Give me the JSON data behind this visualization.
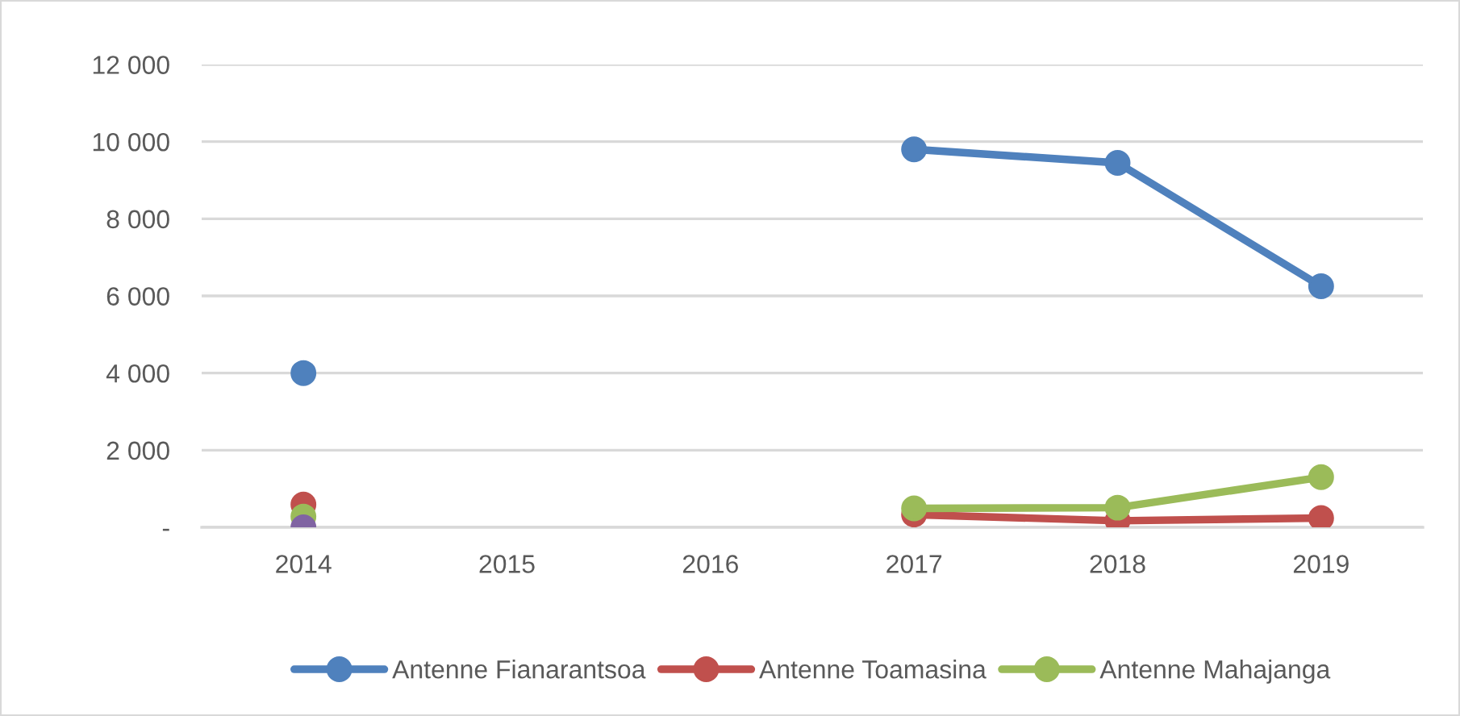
{
  "chart_data": {
    "type": "line",
    "categories": [
      "2014",
      "2015",
      "2016",
      "2017",
      "2018",
      "2019"
    ],
    "series": [
      {
        "name": "Antenne Fianarantsoa",
        "color": "#4f81bd",
        "values": [
          4000,
          null,
          null,
          9800,
          9450,
          6250
        ]
      },
      {
        "name": "Antenne Toamasina",
        "color": "#c0504d",
        "values": [
          590,
          null,
          null,
          330,
          170,
          240
        ]
      },
      {
        "name": "Antenne Mahajanga",
        "color": "#9bbb59",
        "values": [
          280,
          null,
          null,
          490,
          510,
          1300
        ]
      },
      {
        "color": "#8064a2",
        "values": [
          0,
          null,
          null,
          null,
          null,
          null
        ]
      }
    ],
    "ylim": [
      0,
      12000
    ],
    "yticks": [
      {
        "value": 0,
        "label": "-"
      },
      {
        "value": 2000,
        "label": "2 000"
      },
      {
        "value": 4000,
        "label": "4 000"
      },
      {
        "value": 6000,
        "label": "6 000"
      },
      {
        "value": 8000,
        "label": "8 000"
      },
      {
        "value": 10000,
        "label": "10 000"
      },
      {
        "value": 12000,
        "label": "12 000"
      }
    ],
    "grid": "y",
    "legend": "bottom",
    "marker": "circle",
    "line_style": "solid"
  }
}
